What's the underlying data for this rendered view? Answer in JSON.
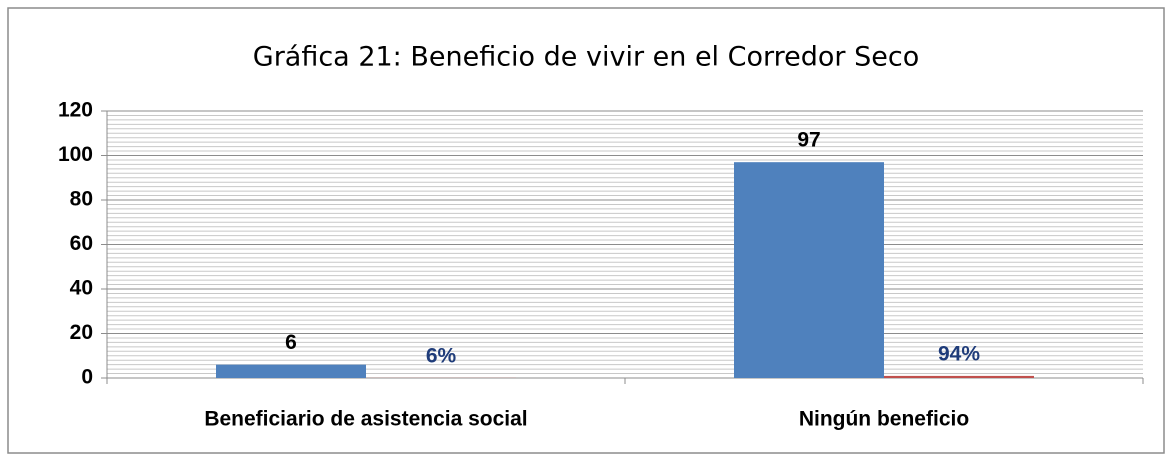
{
  "chart_data": {
    "type": "bar",
    "title": "Gráfica 21: Beneficio de vivir en el Corredor Seco",
    "categories": [
      "Beneficiario de asistencia social",
      "Ningún beneficio"
    ],
    "series": [
      {
        "color": "#4f81bd",
        "values": [
          6,
          97
        ]
      },
      {
        "color": "#c0504d",
        "values": [
          0.06,
          0.94
        ],
        "value_labels": [
          "6%",
          "94%"
        ],
        "label_color": "#1f3c7a"
      }
    ],
    "ylim": [
      0,
      120
    ],
    "yticks": [
      0,
      20,
      40,
      60,
      80,
      100,
      120
    ],
    "grid": true,
    "minor_grid_divisions": 10
  }
}
